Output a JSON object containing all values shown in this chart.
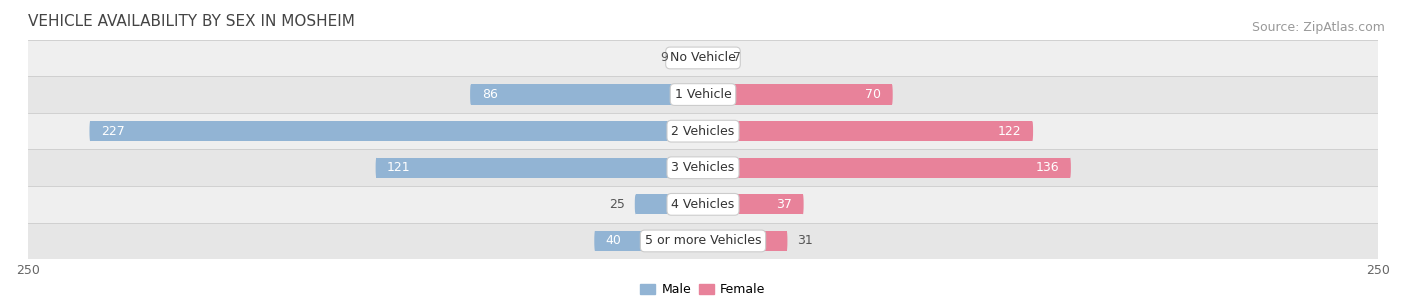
{
  "title": "VEHICLE AVAILABILITY BY SEX IN MOSHEIM",
  "source": "Source: ZipAtlas.com",
  "categories": [
    "No Vehicle",
    "1 Vehicle",
    "2 Vehicles",
    "3 Vehicles",
    "4 Vehicles",
    "5 or more Vehicles"
  ],
  "male_values": [
    9,
    86,
    227,
    121,
    25,
    40
  ],
  "female_values": [
    7,
    70,
    122,
    136,
    37,
    31
  ],
  "male_color": "#92b4d4",
  "female_color": "#e8829a",
  "x_max": 250,
  "label_color_dark": "#555555",
  "label_color_light": "#ffffff",
  "title_fontsize": 11,
  "source_fontsize": 9,
  "tick_fontsize": 9,
  "bar_label_fontsize": 9,
  "category_fontsize": 9,
  "legend_fontsize": 9,
  "bar_height": 0.55,
  "figsize": [
    14.06,
    3.05
  ],
  "dpi": 100
}
